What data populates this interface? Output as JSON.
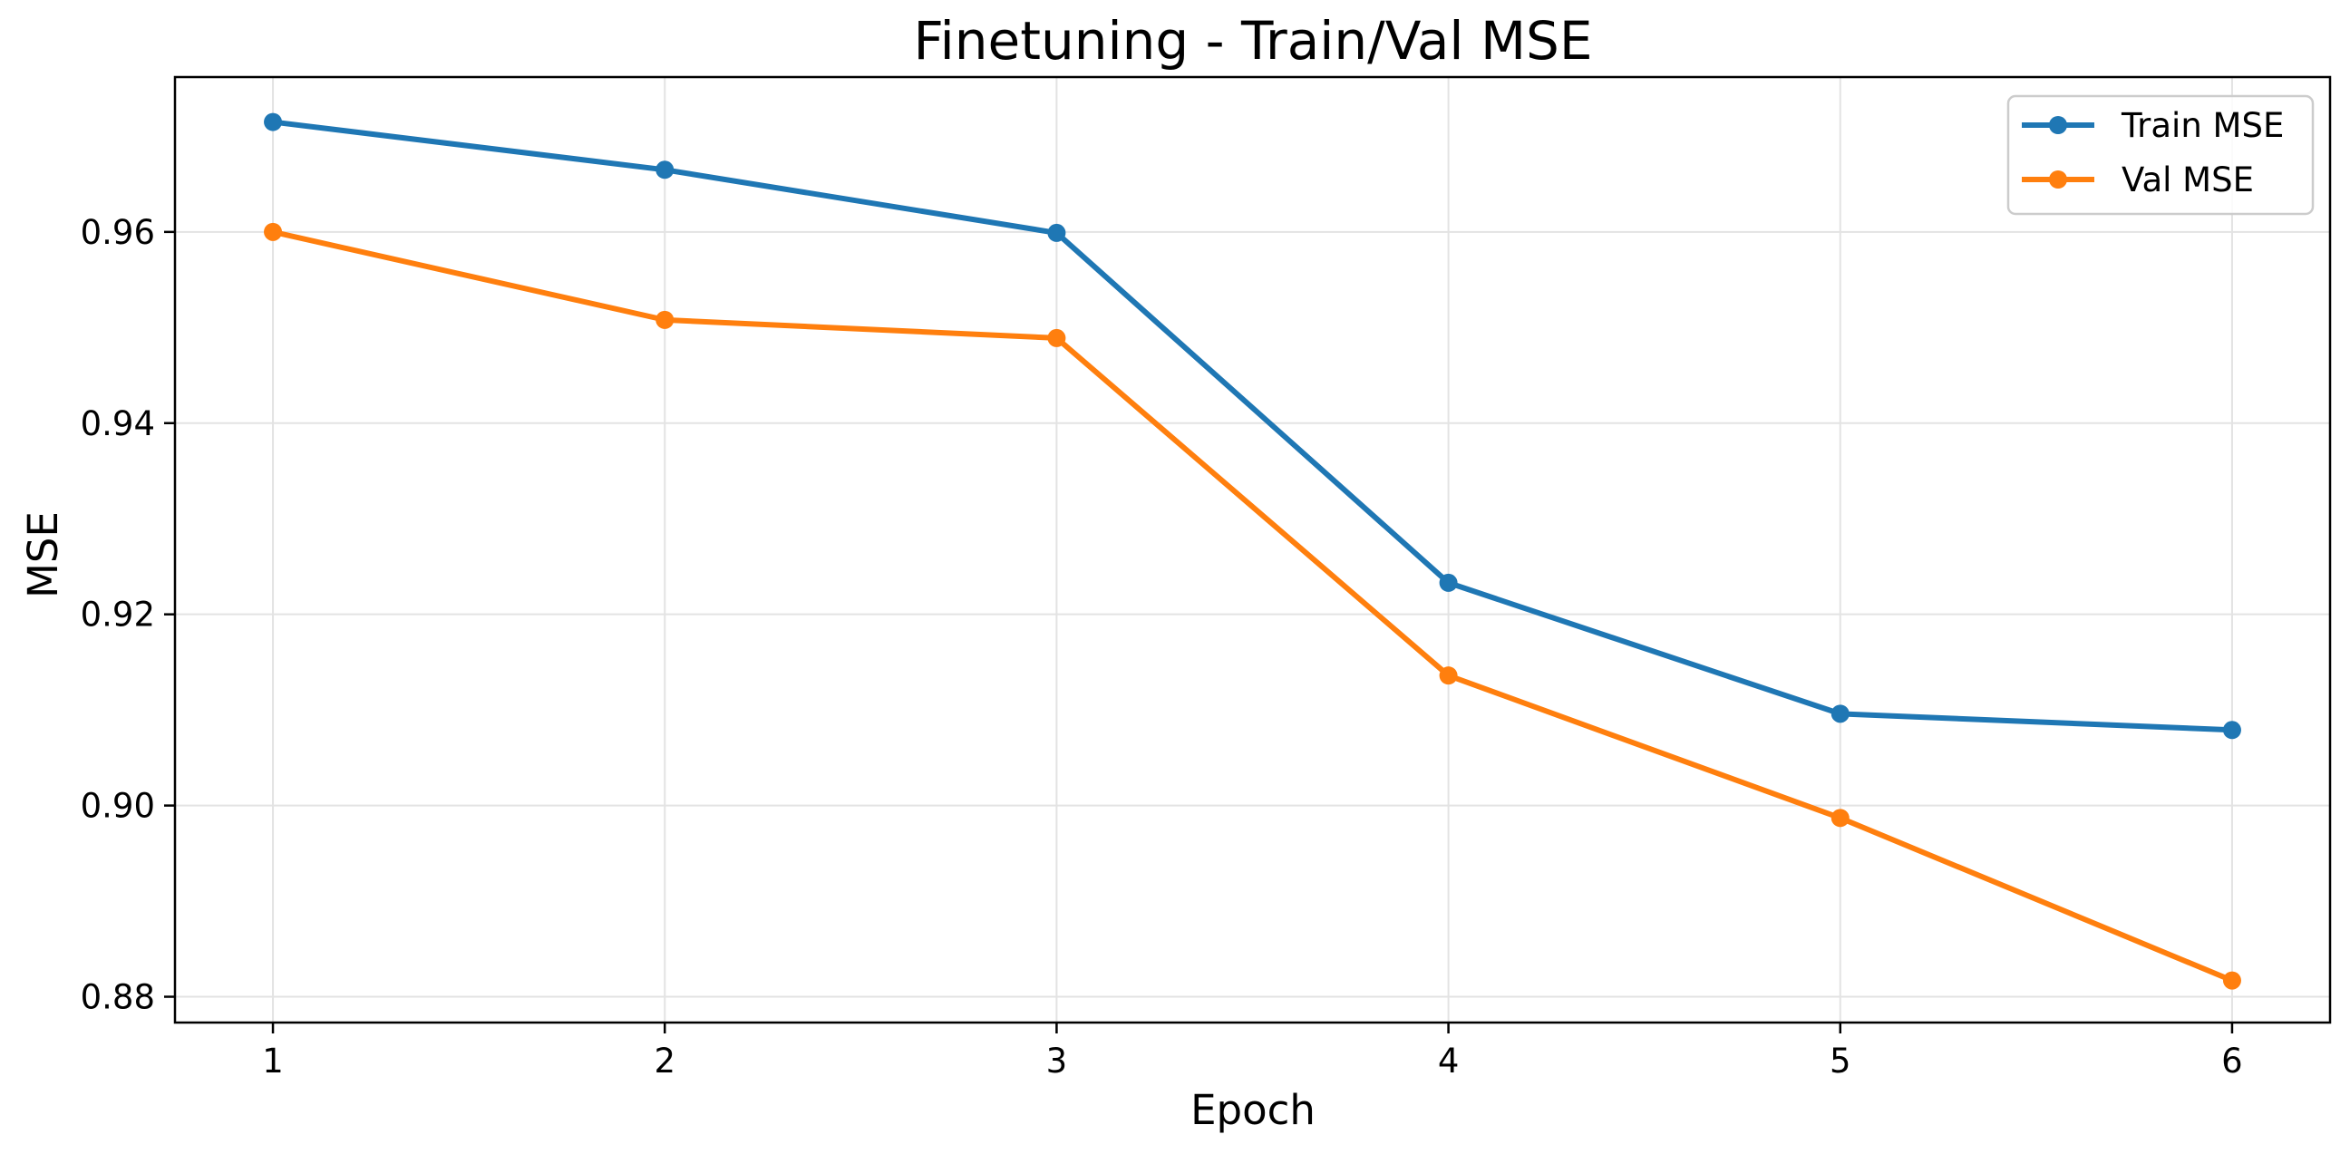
{
  "chart_data": {
    "type": "line",
    "title": "Finetuning - Train/Val MSE",
    "xlabel": "Epoch",
    "ylabel": "MSE",
    "x": [
      1,
      2,
      3,
      4,
      5,
      6
    ],
    "xticks": [
      1,
      2,
      3,
      4,
      5,
      6
    ],
    "yticks": [
      0.88,
      0.9,
      0.92,
      0.94,
      0.96
    ],
    "ytick_labels": [
      "0.88",
      "0.90",
      "0.92",
      "0.94",
      "0.96"
    ],
    "xlim": [
      0.75,
      6.25
    ],
    "ylim": [
      0.8773,
      0.9762
    ],
    "grid": true,
    "legend_position": "upper right",
    "series": [
      {
        "name": "Train MSE",
        "color": "#1f77b4",
        "marker": "circle",
        "values": [
          0.9715,
          0.9665,
          0.9599,
          0.9233,
          0.9096,
          0.9079
        ]
      },
      {
        "name": "Val MSE",
        "color": "#ff7f0e",
        "marker": "circle",
        "values": [
          0.96,
          0.9508,
          0.9489,
          0.9136,
          0.8987,
          0.8817
        ]
      }
    ]
  }
}
